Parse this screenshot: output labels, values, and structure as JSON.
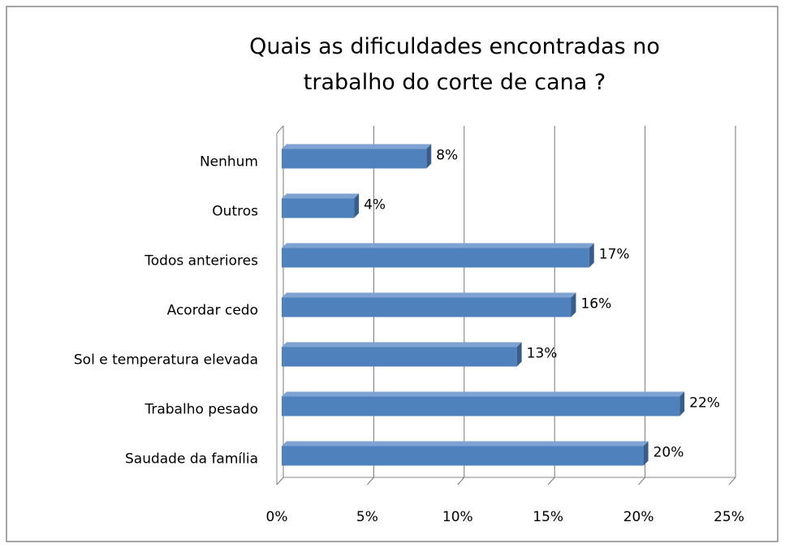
{
  "chart_data": {
    "type": "bar3d-horizontal",
    "title": "Quais as dificuldades encontradas no trabalho do corte de cana ?",
    "categories": [
      "Nenhum",
      "Outros",
      "Todos anteriores",
      "Acordar cedo",
      "Sol e temperatura elevada",
      "Trabalho pesado",
      "Saudade da família"
    ],
    "values": [
      8,
      4,
      17,
      16,
      13,
      22,
      20
    ],
    "value_labels": [
      "8%",
      "4%",
      "17%",
      "16%",
      "13%",
      "22%",
      "20%"
    ],
    "color": "#4f81bd",
    "xlim": [
      0,
      25
    ],
    "xticks": [
      {
        "value": 0,
        "label": "0%"
      },
      {
        "value": 5,
        "label": "5%"
      },
      {
        "value": 10,
        "label": "10%"
      },
      {
        "value": 15,
        "label": "15%"
      },
      {
        "value": 20,
        "label": "20%"
      },
      {
        "value": 25,
        "label": "25%"
      }
    ],
    "grid": true
  }
}
